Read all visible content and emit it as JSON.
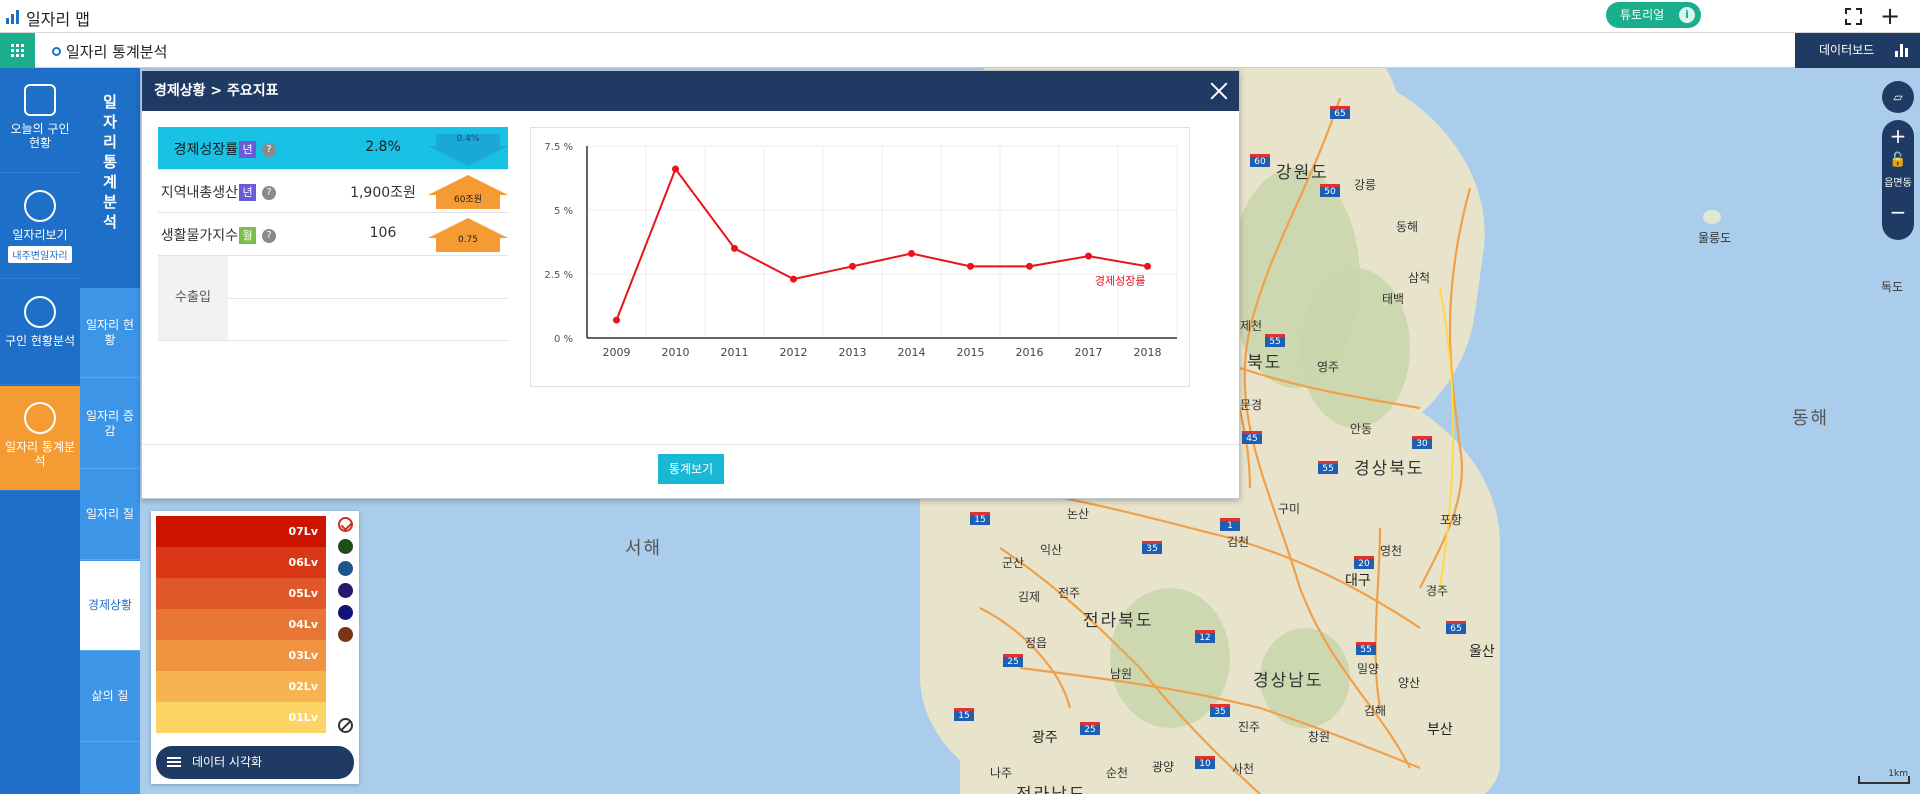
{
  "app": {
    "title": "일자리 맵",
    "tutorial_label": "튜토리얼",
    "tutorial_info": "i"
  },
  "subbar": {
    "title": "일자리 통계분석",
    "dashboard_label": "데이터보드"
  },
  "leftnav": {
    "items": [
      {
        "label": "오늘의 구인 현황"
      },
      {
        "label": "일자리보기",
        "tag": "내주변일자리"
      },
      {
        "label": "구인 현황분석"
      },
      {
        "label": "일자리 통계분석"
      }
    ]
  },
  "subnav": {
    "header": "일자리통계분석",
    "items": [
      {
        "label": "일자리 현황"
      },
      {
        "label": "일자리 증감"
      },
      {
        "label": "일자리 질"
      },
      {
        "label": "경제상황"
      },
      {
        "label": "삶의 질"
      }
    ]
  },
  "map": {
    "labels": {
      "gangwon": "강원도",
      "gyeongbuk": "경상북도",
      "gyeongnam": "경상남도",
      "jeonbuk": "전라북도",
      "seohae": "서해",
      "donghae": "동해",
      "ulleungdo": "울릉도",
      "dokdo": "독도",
      "daegu": "대구",
      "ulsan": "울산",
      "busan": "부산",
      "gwangju": "광주",
      "andong": "안동",
      "yeongju": "영주",
      "gangneung": "강릉",
      "donghae_city": "동해",
      "samcheok": "삼척",
      "taebaek": "태백",
      "pohang": "포항",
      "gyeongju": "경주",
      "gumi": "구미",
      "gimcheon": "김천",
      "yeongcheon": "영천",
      "miryang": "밀양",
      "gimhae": "김해",
      "changwon": "창원",
      "yangsan": "양산",
      "jinju": "진주",
      "sacheon": "사천",
      "gwangyang": "광양",
      "suncheon": "순천",
      "namwon": "남원",
      "jeonju": "전주",
      "iksan": "익산",
      "gunsan": "군산",
      "gimje": "김제",
      "jeongeup": "정읍",
      "naju": "나주",
      "nonsan": "논산",
      "mungyeong": "문경",
      "jecheon": "제천",
      "partial_bottom": "전라남도",
      "partial_bukdo": "북도"
    },
    "highways": [
      "65",
      "60",
      "50",
      "55",
      "45",
      "55",
      "30",
      "1",
      "35",
      "20",
      "12",
      "25",
      "55",
      "65",
      "15",
      "25",
      "35",
      "10",
      "15"
    ],
    "controls": {
      "layer_label": "",
      "zoom_in": "+",
      "zoom_out": "−",
      "region_label": "읍면동"
    },
    "scale_label": "1km"
  },
  "modal": {
    "title": "경제상황 > 주요지표",
    "indicators": [
      {
        "name": "경제성장률",
        "badge": "년",
        "badge_color": "#6a5bd6",
        "help": "?",
        "value": "2.8%",
        "change": "0.4%",
        "direction": "down",
        "arrow_color": "#19a8d8"
      },
      {
        "name": "지역내총생산",
        "badge": "년",
        "badge_color": "#6a5bd6",
        "help": "?",
        "value": "1,900조원",
        "change": "60조원",
        "direction": "up",
        "arrow_color": "#f59b33"
      },
      {
        "name": "생활물가지수",
        "badge": "월",
        "badge_color": "#7cc04a",
        "help": "?",
        "value": "106",
        "change": "0.75",
        "direction": "up",
        "arrow_color": "#f59b33"
      }
    ],
    "extra_label": "수출입",
    "stats_button": "통계보기",
    "chart_data": {
      "type": "line",
      "title": "",
      "xlabel": "",
      "ylabel": "",
      "x": [
        "2009",
        "2010",
        "2011",
        "2012",
        "2013",
        "2014",
        "2015",
        "2016",
        "2017",
        "2018"
      ],
      "series": [
        {
          "name": "경제성장률",
          "values": [
            0.7,
            6.6,
            3.5,
            2.3,
            2.8,
            3.3,
            2.8,
            2.8,
            3.2,
            2.8
          ],
          "color": "#e8131b"
        }
      ],
      "ylim": [
        0,
        7.5
      ],
      "yticks": [
        "0 %",
        "2.5 %",
        "5 %",
        "7.5 %"
      ],
      "grid": true
    }
  },
  "legend": {
    "levels": [
      {
        "label": "07Lv",
        "color": "#cc1400"
      },
      {
        "label": "06Lv",
        "color": "#d93716"
      },
      {
        "label": "05Lv",
        "color": "#e0572a"
      },
      {
        "label": "04Lv",
        "color": "#e77534"
      },
      {
        "label": "03Lv",
        "color": "#ef9340"
      },
      {
        "label": "02Lv",
        "color": "#f6b34f"
      },
      {
        "label": "01Lv",
        "color": "#fcd466"
      }
    ],
    "swatches": [
      "#d7281e",
      "#1f4d17",
      "#1e5590",
      "#2a1770",
      "#13127a",
      "#7a3612"
    ],
    "viz_button": "데이터 시각화"
  }
}
